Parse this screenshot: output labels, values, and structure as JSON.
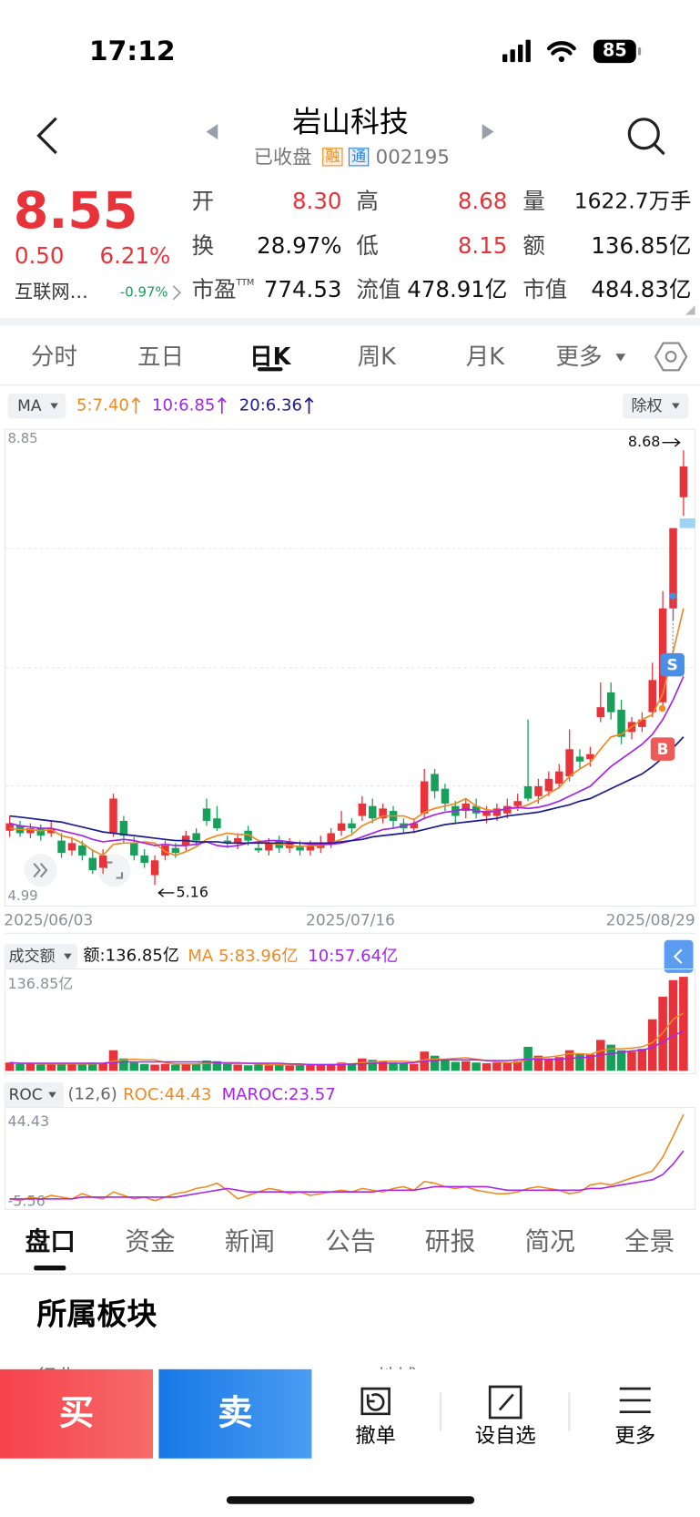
{
  "status_bar": {
    "time": "17:12",
    "battery": "85"
  },
  "header": {
    "title": "岩山科技",
    "state": "已收盘",
    "badges": [
      "融",
      "通"
    ],
    "code": "002195"
  },
  "quote": {
    "price": "8.55",
    "change": "0.50",
    "change_pct": "6.21%",
    "sector": "互联网…",
    "sector_change": "-0.97%",
    "fields": [
      {
        "label": "开",
        "value": "8.30"
      },
      {
        "label": "高",
        "value": "8.68"
      },
      {
        "label": "量",
        "value": "1622.7万手"
      },
      {
        "label": "换",
        "value": "28.97%"
      },
      {
        "label": "低",
        "value": "8.15"
      },
      {
        "label": "额",
        "value": "136.85亿"
      },
      {
        "label": "市盈",
        "sup": "TTM",
        "value": "774.53"
      },
      {
        "label": "流值",
        "value": "478.91亿"
      },
      {
        "label": "市值",
        "value": "484.83亿"
      }
    ]
  },
  "period_tabs": [
    "分时",
    "五日",
    "日K",
    "周K",
    "月K",
    "更多"
  ],
  "kline": {
    "type": "candlestick",
    "indicator": "MA",
    "adjust": "除权",
    "ylim": [
      4.99,
      8.85
    ],
    "grid": true,
    "up_color": "#e8333a",
    "down_color": "#16a05a",
    "open": [
      5.6,
      5.64,
      5.58,
      5.62,
      5.58,
      5.52,
      5.44,
      5.48,
      5.38,
      5.3,
      5.58,
      5.68,
      5.5,
      5.4,
      5.24,
      5.4,
      5.46,
      5.48,
      5.58,
      5.78,
      5.7,
      5.52,
      5.5,
      5.6,
      5.46,
      5.44,
      5.52,
      5.46,
      5.48,
      5.44,
      5.46,
      5.5,
      5.6,
      5.66,
      5.72,
      5.8,
      5.7,
      5.76,
      5.66,
      5.62,
      5.74,
      6.06,
      5.94,
      5.8,
      5.76,
      5.8,
      5.72,
      5.72,
      5.74,
      5.8,
      5.96,
      5.88,
      5.92,
      5.98,
      6.04,
      6.2,
      6.18,
      6.52,
      6.72,
      6.58,
      6.4,
      6.44,
      6.56,
      6.64,
      7.4,
      8.3
    ],
    "close": [
      5.66,
      5.58,
      5.62,
      5.56,
      5.62,
      5.42,
      5.5,
      5.4,
      5.28,
      5.4,
      5.86,
      5.56,
      5.4,
      5.34,
      5.36,
      5.48,
      5.42,
      5.56,
      5.52,
      5.68,
      5.62,
      5.5,
      5.54,
      5.52,
      5.44,
      5.5,
      5.46,
      5.5,
      5.44,
      5.48,
      5.5,
      5.58,
      5.66,
      5.62,
      5.82,
      5.7,
      5.78,
      5.68,
      5.62,
      5.66,
      6.0,
      5.92,
      5.82,
      5.72,
      5.82,
      5.74,
      5.76,
      5.78,
      5.8,
      5.84,
      5.86,
      5.96,
      6.02,
      6.08,
      6.26,
      6.16,
      6.22,
      6.6,
      6.56,
      6.36,
      6.48,
      6.5,
      6.82,
      7.4,
      8.05,
      8.55
    ],
    "high": [
      5.72,
      5.68,
      5.66,
      5.65,
      5.68,
      5.58,
      5.55,
      5.52,
      5.45,
      5.45,
      5.9,
      5.72,
      5.55,
      5.45,
      5.4,
      5.52,
      5.5,
      5.6,
      5.62,
      5.86,
      5.8,
      5.56,
      5.58,
      5.64,
      5.5,
      5.54,
      5.56,
      5.54,
      5.52,
      5.52,
      5.56,
      5.62,
      5.76,
      5.7,
      5.88,
      5.86,
      5.82,
      5.8,
      5.7,
      5.7,
      6.1,
      6.1,
      5.98,
      5.84,
      5.86,
      5.86,
      5.8,
      5.82,
      5.86,
      5.9,
      6.5,
      6.02,
      6.08,
      6.14,
      6.42,
      6.26,
      6.28,
      6.8,
      6.8,
      6.66,
      6.52,
      6.56,
      6.96,
      7.54,
      8.05,
      8.68
    ],
    "low": [
      5.55,
      5.55,
      5.54,
      5.52,
      5.55,
      5.38,
      5.4,
      5.36,
      5.25,
      5.25,
      5.55,
      5.5,
      5.36,
      5.3,
      5.16,
      5.36,
      5.38,
      5.44,
      5.48,
      5.64,
      5.6,
      5.46,
      5.45,
      5.48,
      5.42,
      5.4,
      5.42,
      5.42,
      5.4,
      5.4,
      5.42,
      5.46,
      5.56,
      5.58,
      5.68,
      5.66,
      5.66,
      5.62,
      5.58,
      5.58,
      5.7,
      5.86,
      5.76,
      5.66,
      5.7,
      5.7,
      5.66,
      5.68,
      5.7,
      5.76,
      5.84,
      5.82,
      5.88,
      5.94,
      6.0,
      6.1,
      6.12,
      6.48,
      6.5,
      6.3,
      6.34,
      6.4,
      6.52,
      6.6,
      7.3,
      8.15
    ],
    "series": [
      {
        "label": "5:7.40",
        "color": "#f08a24",
        "values": [
          5.62,
          5.61,
          5.61,
          5.6,
          5.61,
          5.56,
          5.54,
          5.5,
          5.44,
          5.4,
          5.49,
          5.5,
          5.5,
          5.51,
          5.5,
          5.43,
          5.4,
          5.43,
          5.47,
          5.53,
          5.56,
          5.58,
          5.57,
          5.57,
          5.52,
          5.5,
          5.49,
          5.48,
          5.47,
          5.48,
          5.48,
          5.5,
          5.53,
          5.57,
          5.64,
          5.68,
          5.72,
          5.72,
          5.72,
          5.69,
          5.75,
          5.78,
          5.8,
          5.82,
          5.86,
          5.8,
          5.77,
          5.76,
          5.78,
          5.78,
          5.81,
          5.85,
          5.9,
          5.95,
          6.04,
          6.1,
          6.15,
          6.26,
          6.36,
          6.38,
          6.44,
          6.5,
          6.54,
          6.71,
          7.05,
          7.4
        ]
      },
      {
        "label": "10:6.85",
        "color": "#a526e8",
        "values": [
          5.66,
          5.64,
          5.63,
          5.62,
          5.62,
          5.6,
          5.58,
          5.56,
          5.53,
          5.51,
          5.52,
          5.53,
          5.52,
          5.5,
          5.48,
          5.49,
          5.48,
          5.48,
          5.49,
          5.51,
          5.48,
          5.47,
          5.48,
          5.5,
          5.51,
          5.52,
          5.52,
          5.51,
          5.5,
          5.49,
          5.49,
          5.49,
          5.5,
          5.52,
          5.55,
          5.58,
          5.61,
          5.62,
          5.64,
          5.66,
          5.7,
          5.73,
          5.75,
          5.76,
          5.78,
          5.76,
          5.75,
          5.76,
          5.78,
          5.79,
          5.78,
          5.79,
          5.81,
          5.84,
          5.88,
          5.92,
          5.96,
          6.04,
          6.12,
          6.18,
          6.24,
          6.3,
          6.38,
          6.5,
          6.66,
          6.85
        ]
      },
      {
        "label": "20:6.36",
        "color": "#1c1c8f",
        "values": [
          5.72,
          5.71,
          5.7,
          5.69,
          5.68,
          5.67,
          5.65,
          5.63,
          5.61,
          5.59,
          5.58,
          5.57,
          5.56,
          5.55,
          5.54,
          5.53,
          5.52,
          5.52,
          5.51,
          5.51,
          5.51,
          5.5,
          5.5,
          5.5,
          5.5,
          5.5,
          5.5,
          5.5,
          5.5,
          5.5,
          5.5,
          5.5,
          5.51,
          5.52,
          5.53,
          5.55,
          5.56,
          5.57,
          5.58,
          5.59,
          5.61,
          5.63,
          5.65,
          5.66,
          5.67,
          5.68,
          5.69,
          5.7,
          5.72,
          5.73,
          5.74,
          5.75,
          5.77,
          5.79,
          5.81,
          5.84,
          5.86,
          5.9,
          5.94,
          5.98,
          6.02,
          6.06,
          6.12,
          6.19,
          6.27,
          6.36
        ]
      }
    ],
    "annotations": {
      "high": 8.68,
      "low": 5.16
    },
    "markers": [
      "S",
      "B"
    ],
    "date_labels": [
      "2025/06/03",
      "2025/07/16",
      "2025/08/29"
    ]
  },
  "volume": {
    "type": "bar",
    "title": "成交额",
    "value_label": "额:136.85亿",
    "ylim": [
      0,
      136.85
    ],
    "yticks": [
      {
        "value": 136.85,
        "label": "136.85亿"
      }
    ],
    "values": [
      12,
      10,
      11,
      9,
      10,
      11,
      9,
      10,
      12,
      11,
      30,
      18,
      12,
      10,
      9,
      10,
      9,
      11,
      10,
      15,
      14,
      10,
      9,
      8,
      9,
      8,
      9,
      8,
      9,
      10,
      9,
      10,
      12,
      11,
      18,
      16,
      13,
      12,
      11,
      10,
      28,
      22,
      16,
      13,
      14,
      12,
      11,
      12,
      13,
      14,
      35,
      22,
      18,
      20,
      30,
      25,
      24,
      45,
      38,
      30,
      28,
      32,
      75,
      108,
      132,
      136.85
    ],
    "series": [
      {
        "label": "MA 5:83.96亿",
        "color": "#f08a24",
        "values": [
          12,
          11,
          11,
          10,
          10,
          10,
          10,
          10,
          10,
          11,
          14,
          16,
          17,
          16,
          16,
          12,
          10,
          10,
          10,
          11,
          12,
          12,
          12,
          11,
          10,
          9,
          9,
          8,
          9,
          9,
          9,
          9,
          10,
          10,
          12,
          13,
          14,
          14,
          14,
          13,
          16,
          17,
          17,
          18,
          19,
          17,
          15,
          13,
          12,
          12,
          17,
          19,
          20,
          22,
          25,
          25,
          24,
          29,
          32,
          32,
          33,
          35,
          41,
          55,
          75,
          83.96
        ]
      },
      {
        "label": "10:57.64亿",
        "color": "#a526e8",
        "values": [
          12,
          11,
          11,
          11,
          11,
          11,
          11,
          11,
          11,
          11,
          12,
          13,
          13,
          13,
          13,
          13,
          13,
          13,
          13,
          13,
          12,
          11,
          11,
          11,
          11,
          11,
          11,
          10,
          10,
          9,
          9,
          9,
          9,
          10,
          10,
          11,
          11,
          11,
          11,
          12,
          14,
          15,
          16,
          16,
          16,
          16,
          15,
          15,
          15,
          16,
          17,
          17,
          17,
          17,
          18,
          19,
          20,
          23,
          25,
          27,
          29,
          30,
          34,
          42,
          51,
          57.64
        ]
      }
    ]
  },
  "roc": {
    "type": "line",
    "title": "ROC",
    "params": "(12,6)",
    "ylim": [
      -5.56,
      44.43
    ],
    "yticks": [
      44.43,
      -5.56
    ],
    "series": [
      {
        "label": "ROC:44.43",
        "color": "#f08a24",
        "values": [
          -4,
          -5,
          -3,
          -4,
          -2,
          -3,
          -4,
          -1,
          -3,
          -4,
          0,
          -2,
          -4,
          -3,
          -5,
          -3,
          -1,
          0,
          2,
          3,
          5,
          1,
          -4,
          -2,
          0,
          2,
          1,
          -1,
          0,
          -2,
          -1,
          0,
          1,
          0,
          2,
          1,
          0,
          2,
          3,
          1,
          6,
          5,
          3,
          2,
          3,
          1,
          0,
          -1,
          -1,
          0,
          2,
          3,
          2,
          1,
          -1,
          0,
          4,
          5,
          4,
          6,
          8,
          10,
          12,
          20,
          32,
          44.43
        ]
      },
      {
        "label": "MAROC:23.57",
        "color": "#a526e8",
        "values": [
          -4,
          -4,
          -4,
          -4,
          -4,
          -4,
          -4,
          -3,
          -3,
          -3,
          -3,
          -3,
          -3,
          -3,
          -3,
          -3,
          -3,
          -2,
          -1,
          0,
          1,
          2,
          1,
          0,
          0,
          0,
          0,
          0,
          0,
          0,
          0,
          0,
          0,
          0,
          0,
          0,
          1,
          1,
          1,
          1,
          2,
          3,
          3,
          3,
          3,
          3,
          3,
          2,
          1,
          1,
          1,
          1,
          1,
          1,
          1,
          1,
          2,
          2,
          3,
          4,
          5,
          6,
          7,
          10,
          16,
          23.57
        ]
      }
    ]
  },
  "info_tabs": [
    "盘口",
    "资金",
    "新闻",
    "公告",
    "研报",
    "简况",
    "全景"
  ],
  "section": {
    "title": "所属板块",
    "columns": [
      "行业",
      "地域"
    ]
  },
  "actions": {
    "buy": "买",
    "sell": "卖",
    "items": [
      "撤单",
      "设自选",
      "更多"
    ]
  }
}
